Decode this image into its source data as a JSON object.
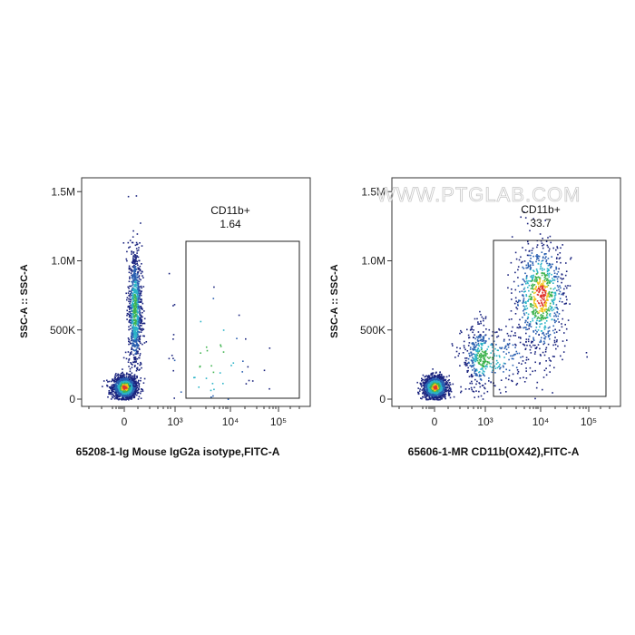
{
  "watermark": "WWW.PTGLAB.COM",
  "chart_data": [
    {
      "type": "scatter",
      "xlabel": "65208-1-Ig Mouse IgG2a isotype,FITC-A",
      "ylabel": "SSC-A :: SSC-A",
      "ylim": [
        0,
        1600000
      ],
      "x_scale": "biexponential",
      "y_ticks": [
        "0",
        "500K",
        "1.0M",
        "1.5M"
      ],
      "x_ticks": [
        "0",
        "10³",
        "10⁴",
        "10⁵"
      ],
      "gate": {
        "name": "CD11b+",
        "value": "1.64"
      },
      "populations": [
        {
          "x_center": 0.0,
          "y_center": 90000,
          "spread_x": 0.35,
          "spread_y": 40000,
          "share": 0.55
        },
        {
          "x_center": 0.6,
          "y_center": 650000,
          "spread_x": 0.2,
          "spread_y": 230000,
          "share": 0.35
        },
        {
          "x_center": 3.6,
          "y_center": 350000,
          "spread_x": 0.5,
          "spread_y": 300000,
          "share": 0.02
        }
      ]
    },
    {
      "type": "scatter",
      "xlabel": "65606-1-MR CD11b(OX42),FITC-A",
      "ylabel": "SSC-A :: SSC-A",
      "ylim": [
        0,
        1600000
      ],
      "x_scale": "biexponential",
      "y_ticks": [
        "0",
        "500K",
        "1.0M",
        "1.5M"
      ],
      "x_ticks": [
        "0",
        "10³",
        "10⁴",
        "10⁵"
      ],
      "gate": {
        "name": "CD11b+",
        "value": "33.7"
      },
      "populations": [
        {
          "x_center": 0.0,
          "y_center": 90000,
          "spread_x": 0.35,
          "spread_y": 40000,
          "share": 0.5
        },
        {
          "x_center": 4.0,
          "y_center": 750000,
          "spread_x": 0.25,
          "spread_y": 200000,
          "share": 0.3
        },
        {
          "x_center": 2.8,
          "y_center": 300000,
          "spread_x": 0.6,
          "spread_y": 120000,
          "share": 0.2
        }
      ]
    }
  ]
}
